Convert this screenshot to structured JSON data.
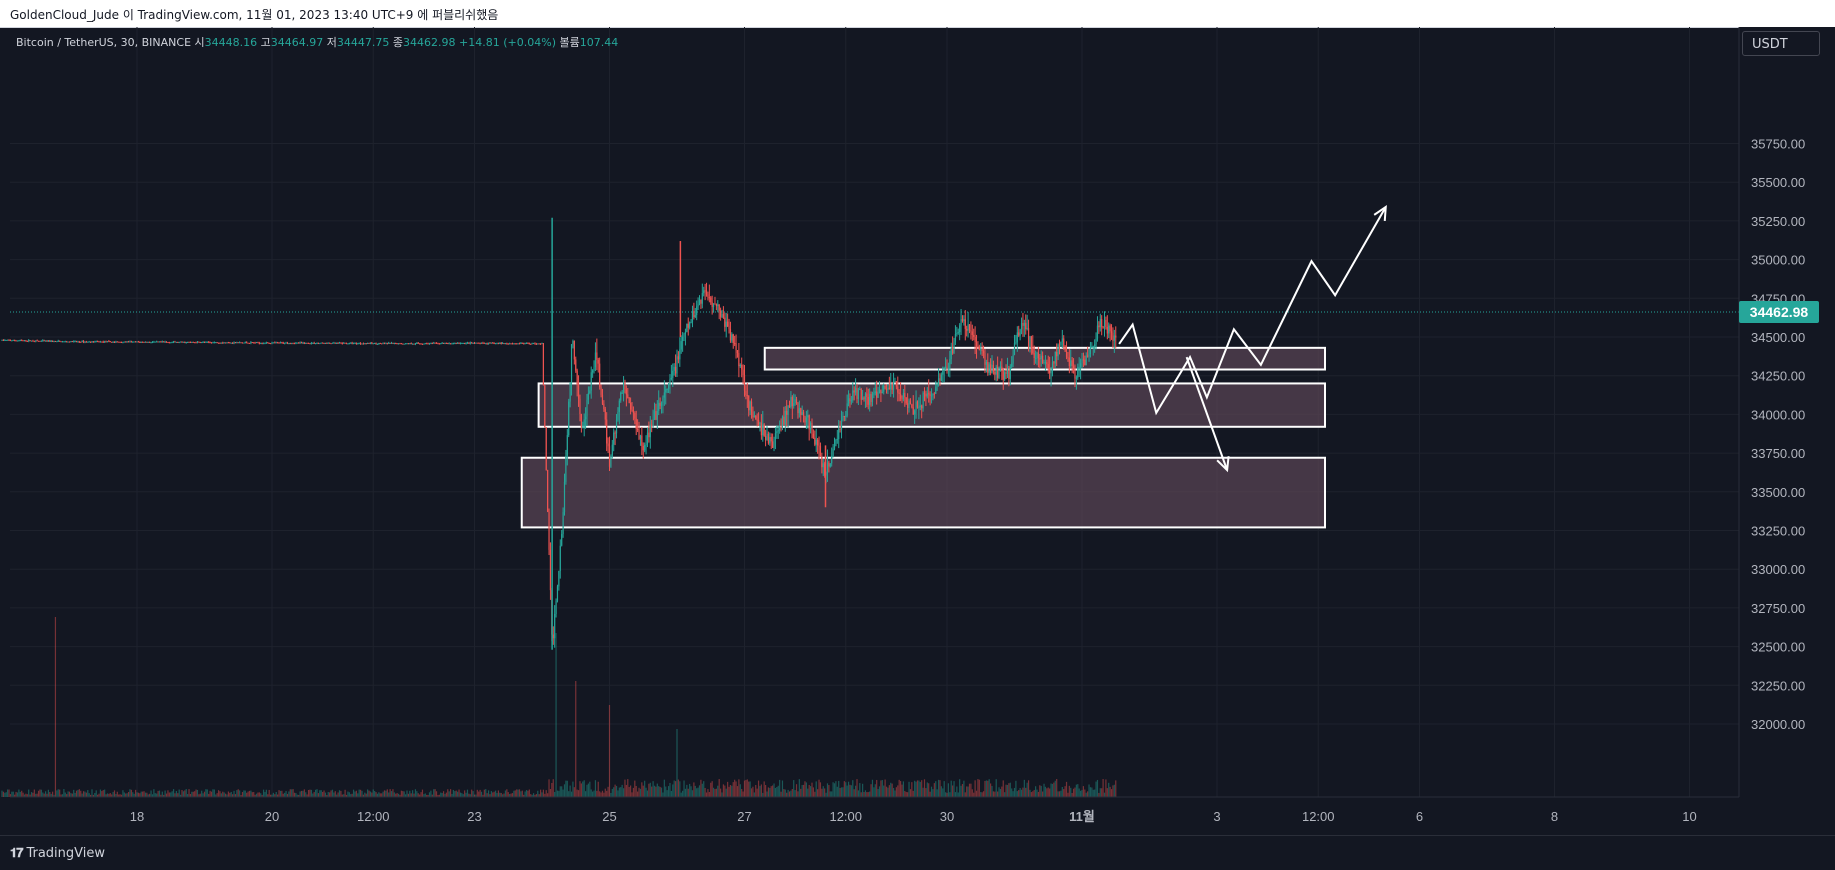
{
  "header": {
    "attribution": "GoldenCloud_Jude 이 TradingView.com, 11월 01, 2023 13:40 UTC+9 에 퍼블리쉬했음"
  },
  "legend": {
    "symbol": "Bitcoin / TetherUS, 30, BINANCE",
    "open_label": "시",
    "open": "34448.16",
    "high_label": "고",
    "high": "34464.97",
    "low_label": "저",
    "low": "34447.75",
    "close_label": "종",
    "close": "34462.98",
    "change": "+14.81 (+0.04%)",
    "volume_label": "볼륨",
    "volume": "107.44"
  },
  "currency": "USDT",
  "last_price": "34462.98",
  "footer": {
    "brand": "TradingView"
  },
  "colors": {
    "up": "#26a69a",
    "down": "#ef5350",
    "zone_fill": "#5b4656",
    "zone_stroke": "#ffffff",
    "projection": "#ffffff",
    "background": "#131722",
    "grid": "#1e222d"
  },
  "chart_data": {
    "type": "candlestick",
    "y_ticks": [
      35750,
      35500,
      35250,
      35000,
      34750,
      34500,
      34250,
      34000,
      33750,
      33500,
      33250,
      33000,
      32750,
      32500,
      32250,
      32000
    ],
    "y_tick_labels": [
      "35750.00",
      "35500.00",
      "35250.00",
      "35000.00",
      "34750.00",
      "34500.00",
      "34250.00",
      "34000.00",
      "33750.00",
      "33500.00",
      "33250.00",
      "33000.00",
      "32750.00",
      "32500.00",
      "32250.00",
      "32000.00"
    ],
    "x_ticks": [
      {
        "label": "18",
        "day": 18
      },
      {
        "label": "20",
        "day": 20
      },
      {
        "label": "12:00",
        "day": 21.5
      },
      {
        "label": "23",
        "day": 23
      },
      {
        "label": "25",
        "day": 25
      },
      {
        "label": "27",
        "day": 27
      },
      {
        "label": "12:00",
        "day": 28.5
      },
      {
        "label": "30",
        "day": 30
      },
      {
        "label": "11월",
        "day": 32
      },
      {
        "label": "3",
        "day": 34
      },
      {
        "label": "12:00",
        "day": 35.5
      },
      {
        "label": "6",
        "day": 37
      },
      {
        "label": "8",
        "day": 39
      },
      {
        "label": "10",
        "day": 41
      }
    ],
    "last_price": 34462.98,
    "price_path": [
      [
        16.0,
        34480
      ],
      [
        17.0,
        34470
      ],
      [
        18.0,
        34468
      ],
      [
        19.0,
        34466
      ],
      [
        20.0,
        34462
      ],
      [
        21.0,
        34460
      ],
      [
        22.0,
        34458
      ],
      [
        23.0,
        34460
      ],
      [
        24.0,
        34458
      ],
      [
        24.15,
        32500
      ],
      [
        24.3,
        33300
      ],
      [
        24.45,
        34500
      ],
      [
        24.6,
        33900
      ],
      [
        24.8,
        34400
      ],
      [
        25.0,
        33700
      ],
      [
        25.2,
        34200
      ],
      [
        25.5,
        33800
      ],
      [
        25.7,
        34000
      ],
      [
        25.9,
        34200
      ],
      [
        26.1,
        34500
      ],
      [
        26.4,
        34800
      ],
      [
        26.6,
        34700
      ],
      [
        26.9,
        34400
      ],
      [
        27.1,
        34000
      ],
      [
        27.4,
        33800
      ],
      [
        27.7,
        34100
      ],
      [
        28.0,
        33900
      ],
      [
        28.2,
        33600
      ],
      [
        28.4,
        33900
      ],
      [
        28.6,
        34150
      ],
      [
        28.9,
        34100
      ],
      [
        29.2,
        34200
      ],
      [
        29.5,
        34050
      ],
      [
        29.8,
        34150
      ],
      [
        30.0,
        34300
      ],
      [
        30.2,
        34600
      ],
      [
        30.4,
        34500
      ],
      [
        30.6,
        34300
      ],
      [
        30.9,
        34250
      ],
      [
        31.1,
        34600
      ],
      [
        31.3,
        34400
      ],
      [
        31.5,
        34300
      ],
      [
        31.7,
        34450
      ],
      [
        31.9,
        34250
      ],
      [
        32.1,
        34400
      ],
      [
        32.3,
        34600
      ],
      [
        32.5,
        34463
      ]
    ],
    "volume_spikes": [
      [
        16.8,
        1.0
      ],
      [
        24.2,
        0.9
      ],
      [
        24.5,
        0.6
      ],
      [
        25.0,
        0.45
      ],
      [
        26.0,
        0.3
      ]
    ],
    "zones": [
      {
        "day_start": 27.3,
        "day_end": 35.6,
        "price_low": 34290,
        "price_high": 34430
      },
      {
        "day_start": 23.95,
        "day_end": 35.6,
        "price_low": 33920,
        "price_high": 34200
      },
      {
        "day_start": 23.7,
        "day_end": 35.6,
        "price_low": 33270,
        "price_high": 33720
      }
    ],
    "projections": [
      [
        [
          32.55,
          34455
        ],
        [
          32.75,
          34580
        ],
        [
          33.1,
          34010
        ],
        [
          33.6,
          34370
        ],
        [
          33.85,
          34110
        ],
        [
          34.25,
          34550
        ],
        [
          34.65,
          34320
        ],
        [
          35.4,
          34990
        ],
        [
          35.75,
          34770
        ],
        [
          36.5,
          35340
        ]
      ],
      [
        [
          33.55,
          34370
        ],
        [
          34.15,
          33640
        ]
      ]
    ]
  }
}
